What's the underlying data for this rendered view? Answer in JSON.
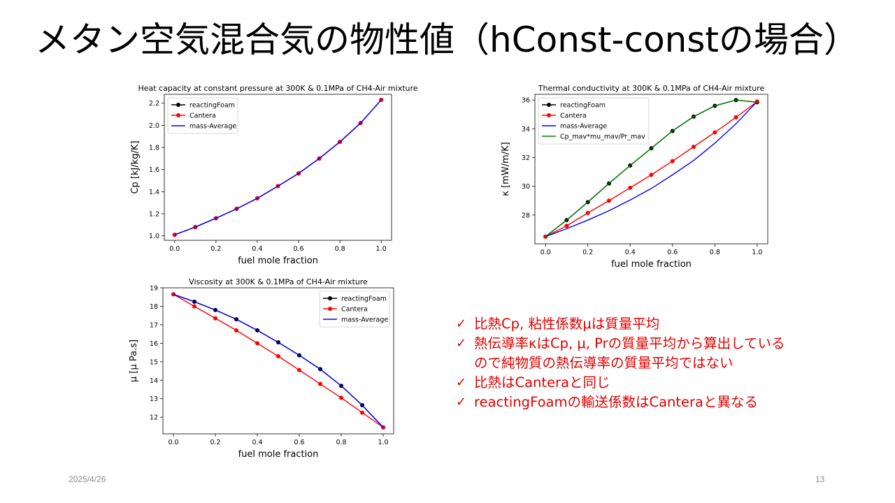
{
  "slide": {
    "title": "メタン空気混合気の物性値（hConst-constの場合）",
    "date": "2025/4/26",
    "page_number": "13"
  },
  "bullets": [
    "比熱Cp, 粘性係数μは質量平均",
    "熱伝導率κはCp, μ, Prの質量平均から算出している",
    "ので純物質の熱伝導率の質量平均ではない",
    "比熱はCanteraと同じ",
    "reactingFoamの輸送係数はCanteraと異なる"
  ],
  "bullet_check": "✓",
  "colors": {
    "accent": "#e00000",
    "reactingFoam": "#000000",
    "Cantera": "#ff0000",
    "massAverage": "#0000ff",
    "cpmav": "#008000"
  },
  "chart_data": [
    {
      "type": "line",
      "title": "Heat capacity at constant pressure at 300K & 0.1MPa of CH4-Air mixture",
      "xlabel": "fuel mole fraction",
      "ylabel": "Cp [kJ/kg/K]",
      "xlim": [
        -0.05,
        1.05
      ],
      "ylim": [
        0.96,
        2.28
      ],
      "xticks": [
        "0.0",
        "0.2",
        "0.4",
        "0.6",
        "0.8",
        "1.0"
      ],
      "yticks": [
        "1.0",
        "1.2",
        "1.4",
        "1.6",
        "1.8",
        "2.0",
        "2.2"
      ],
      "grid": false,
      "legend": "upper-left",
      "x": [
        0.0,
        0.1,
        0.2,
        0.3,
        0.4,
        0.5,
        0.6,
        0.7,
        0.8,
        0.9,
        1.0
      ],
      "series": [
        {
          "name": "reactingFoam",
          "color": "#000000",
          "markers": true,
          "values": [
            1.01,
            1.08,
            1.16,
            1.245,
            1.34,
            1.45,
            1.565,
            1.7,
            1.85,
            2.02,
            2.23
          ]
        },
        {
          "name": "Cantera",
          "color": "#ff0000",
          "markers": true,
          "values": [
            1.01,
            1.08,
            1.16,
            1.245,
            1.34,
            1.45,
            1.565,
            1.7,
            1.85,
            2.02,
            2.23
          ]
        },
        {
          "name": "mass-Average",
          "color": "#0000ff",
          "markers": false,
          "values": [
            1.01,
            1.08,
            1.16,
            1.245,
            1.34,
            1.45,
            1.565,
            1.7,
            1.85,
            2.02,
            2.23
          ]
        }
      ]
    },
    {
      "type": "line",
      "title": "Thermal conductivity at 300K & 0.1MPa of CH4-Air mixture",
      "xlabel": "fuel mole fraction",
      "ylabel": "κ [mW/m/K]",
      "xlim": [
        -0.05,
        1.05
      ],
      "ylim": [
        26.0,
        36.4
      ],
      "xticks": [
        "0.0",
        "0.2",
        "0.4",
        "0.6",
        "0.8",
        "1.0"
      ],
      "yticks": [
        "28",
        "30",
        "32",
        "34",
        "36"
      ],
      "grid": false,
      "legend": "upper-left",
      "x": [
        0.0,
        0.1,
        0.2,
        0.3,
        0.4,
        0.5,
        0.6,
        0.7,
        0.8,
        0.9,
        1.0
      ],
      "series": [
        {
          "name": "reactingFoam",
          "color": "#000000",
          "markers": true,
          "values": [
            26.5,
            27.65,
            28.9,
            30.2,
            31.45,
            32.65,
            33.85,
            34.85,
            35.6,
            36.0,
            35.85
          ]
        },
        {
          "name": "Cantera",
          "color": "#ff0000",
          "markers": true,
          "values": [
            26.5,
            27.25,
            28.15,
            29.0,
            29.9,
            30.8,
            31.75,
            32.75,
            33.75,
            34.8,
            35.9
          ]
        },
        {
          "name": "mass-Average",
          "color": "#0000ff",
          "markers": false,
          "values": [
            26.5,
            27.05,
            27.65,
            28.3,
            29.05,
            29.85,
            30.8,
            31.8,
            33.0,
            34.35,
            35.9
          ]
        },
        {
          "name": "Cp_mav*mu_mav/Pr_mav",
          "color": "#008000",
          "markers": false,
          "values": [
            26.5,
            27.65,
            28.9,
            30.2,
            31.45,
            32.65,
            33.85,
            34.85,
            35.6,
            36.0,
            35.85
          ]
        }
      ]
    },
    {
      "type": "line",
      "title": "Viscosity at 300K & 0.1MPa of CH4-Air mixture",
      "xlabel": "fuel mole fraction",
      "ylabel": "μ [μ Pa.s]",
      "xlim": [
        -0.05,
        1.05
      ],
      "ylim": [
        11.1,
        19.0
      ],
      "xticks": [
        "0.0",
        "0.2",
        "0.4",
        "0.6",
        "0.8",
        "1.0"
      ],
      "yticks": [
        "12",
        "13",
        "14",
        "15",
        "16",
        "17",
        "18",
        "19"
      ],
      "grid": false,
      "legend": "upper-right",
      "x": [
        0.0,
        0.1,
        0.2,
        0.3,
        0.4,
        0.5,
        0.6,
        0.7,
        0.8,
        0.9,
        1.0
      ],
      "series": [
        {
          "name": "reactingFoam",
          "color": "#000000",
          "markers": true,
          "values": [
            18.65,
            18.25,
            17.8,
            17.3,
            16.7,
            16.05,
            15.35,
            14.6,
            13.7,
            12.65,
            11.45
          ]
        },
        {
          "name": "Cantera",
          "color": "#ff0000",
          "markers": true,
          "values": [
            18.65,
            18.0,
            17.35,
            16.7,
            16.0,
            15.3,
            14.55,
            13.8,
            13.05,
            12.25,
            11.45
          ]
        },
        {
          "name": "mass-Average",
          "color": "#0000ff",
          "markers": false,
          "values": [
            18.65,
            18.25,
            17.8,
            17.3,
            16.7,
            16.05,
            15.35,
            14.6,
            13.7,
            12.65,
            11.45
          ]
        }
      ]
    }
  ]
}
